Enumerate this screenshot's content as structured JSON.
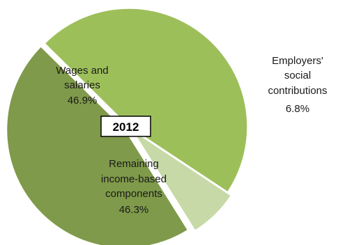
{
  "chart_data": {
    "type": "pie",
    "title": "2012",
    "exploded": true,
    "slices": [
      {
        "name": "Wages and salaries",
        "label_lines": [
          "Wages and",
          "salaries"
        ],
        "value": 46.9,
        "value_label": "46.9%",
        "color": "#9dbf5a"
      },
      {
        "name": "Employers' social contributions",
        "label_lines": [
          "Employers'",
          "social",
          "contributions"
        ],
        "value": 6.8,
        "value_label": "6.8%",
        "color": "#c6d9a6"
      },
      {
        "name": "Remaining income-based components",
        "label_lines": [
          "Remaining",
          "income-based",
          "components"
        ],
        "value": 46.3,
        "value_label": "46.3%",
        "color": "#7f9a4a"
      }
    ]
  }
}
